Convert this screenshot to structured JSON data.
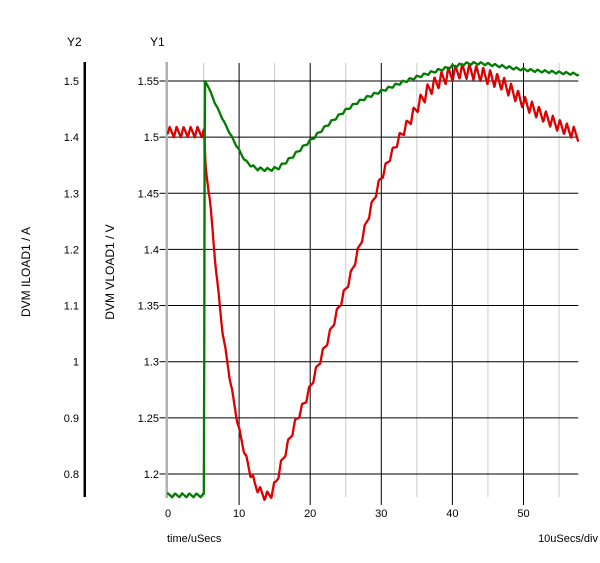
{
  "titles": {
    "y2": "Y2",
    "y1": "Y1"
  },
  "axes": {
    "y2": {
      "name": "DVM ILOAD1 / A",
      "unit": "A",
      "tick_labels": [
        "1.5",
        "1.4",
        "1.3",
        "1.2",
        "1.1",
        "1",
        "0.9",
        "0.8"
      ]
    },
    "y1": {
      "name": "DVM VLOAD1 / V",
      "unit": "V",
      "tick_labels": [
        "1.55",
        "1.5",
        "1.45",
        "1.4",
        "1.35",
        "1.3",
        "1.25",
        "1.2"
      ]
    },
    "x": {
      "name": "time/uSecs",
      "scale_note": "10uSecs/div",
      "tick_labels": [
        "0",
        "10",
        "20",
        "30",
        "40",
        "50"
      ],
      "minor_ticks": [
        5,
        15,
        25,
        35,
        45,
        55
      ],
      "range": [
        0,
        57.7
      ]
    }
  },
  "colors": {
    "grid_major": "#000000",
    "grid_minor": "#cccccc",
    "y2_axis_line": "#000000",
    "y1_axis_line": "#b0b0b0",
    "trace_green": "#007d00",
    "trace_red": "#dd0000"
  },
  "chart_data": {
    "type": "line",
    "title": "",
    "xlabel": "time/uSecs",
    "x_range": [
      0,
      57.7
    ],
    "grid": true,
    "axes_note": "dual y-axes: Y1 volts (1.2-1.55, 0.05/div), Y2 amps (0.8-1.5, 0.1/div), x 10uSecs/div",
    "series": [
      {
        "name": "DVM VLOAD1",
        "axis": "y1",
        "unit": "V",
        "color": "#dd0000",
        "points": [
          [
            0,
            1.5045
          ],
          [
            5.05,
            1.5045
          ],
          [
            5.3,
            1.472
          ],
          [
            5.9,
            1.444
          ],
          [
            6.6,
            1.392
          ],
          [
            7.6,
            1.33
          ],
          [
            8.7,
            1.285
          ],
          [
            9.8,
            1.245
          ],
          [
            10.8,
            1.218
          ],
          [
            11.5,
            1.203
          ],
          [
            12.2,
            1.191
          ],
          [
            13.0,
            1.184
          ],
          [
            13.7,
            1.18
          ],
          [
            14.5,
            1.182
          ],
          [
            15.2,
            1.193
          ],
          [
            15.8,
            1.206
          ],
          [
            17.0,
            1.229
          ],
          [
            18.0,
            1.247
          ],
          [
            19.5,
            1.268
          ],
          [
            21.0,
            1.295
          ],
          [
            22.5,
            1.32
          ],
          [
            24.0,
            1.348
          ],
          [
            25.5,
            1.373
          ],
          [
            27.0,
            1.404
          ],
          [
            28.5,
            1.436
          ],
          [
            29.8,
            1.461
          ],
          [
            31.2,
            1.482
          ],
          [
            32.6,
            1.5
          ],
          [
            34.0,
            1.515
          ],
          [
            35.4,
            1.531
          ],
          [
            36.9,
            1.544
          ],
          [
            38.3,
            1.551
          ],
          [
            39.5,
            1.5555
          ],
          [
            41.0,
            1.5585
          ],
          [
            42.5,
            1.5585
          ],
          [
            44.0,
            1.556
          ],
          [
            45.5,
            1.5525
          ],
          [
            47.0,
            1.548
          ],
          [
            48.5,
            1.54
          ],
          [
            50.0,
            1.531
          ],
          [
            51.5,
            1.5245
          ],
          [
            53.0,
            1.518
          ],
          [
            54.5,
            1.512
          ],
          [
            56.0,
            1.507
          ],
          [
            57.7,
            1.502
          ]
        ],
        "ripple": {
          "period": 0.98,
          "phase": 0.15,
          "amps": [
            [
              0,
              0.0048
            ],
            [
              5.0,
              0.0048
            ],
            [
              5.4,
              0.0015
            ],
            [
              10.5,
              0.002
            ],
            [
              11.5,
              0.004
            ],
            [
              16,
              0.004
            ],
            [
              18,
              0.0035
            ],
            [
              32,
              0.0035
            ],
            [
              34,
              0.005
            ],
            [
              36.5,
              0.0068
            ],
            [
              46,
              0.0068
            ],
            [
              50,
              0.006
            ],
            [
              57.7,
              0.0055
            ]
          ]
        }
      },
      {
        "name": "DVM ILOAD1",
        "axis": "y2",
        "unit": "A",
        "color": "#007d00",
        "points": [
          [
            0,
            0.762
          ],
          [
            5.05,
            0.762
          ],
          [
            5.18,
            1.5
          ],
          [
            5.6,
            1.492
          ],
          [
            6.6,
            1.461
          ],
          [
            8.0,
            1.424
          ],
          [
            9.4,
            1.39
          ],
          [
            10.8,
            1.359
          ],
          [
            11.8,
            1.348
          ],
          [
            12.7,
            1.3435
          ],
          [
            14.2,
            1.342
          ],
          [
            15.5,
            1.345
          ],
          [
            17.2,
            1.362
          ],
          [
            18.5,
            1.377
          ],
          [
            20.4,
            1.398
          ],
          [
            22.0,
            1.417
          ],
          [
            23.5,
            1.433
          ],
          [
            25.0,
            1.448
          ],
          [
            26.5,
            1.461
          ],
          [
            28.0,
            1.471
          ],
          [
            30.0,
            1.482
          ],
          [
            31.5,
            1.49
          ],
          [
            33.0,
            1.498
          ],
          [
            34.5,
            1.505
          ],
          [
            36.0,
            1.511
          ],
          [
            38.0,
            1.519
          ],
          [
            40.0,
            1.526
          ],
          [
            42.0,
            1.531
          ],
          [
            43.5,
            1.5315
          ],
          [
            45.0,
            1.53
          ],
          [
            47.0,
            1.526
          ],
          [
            49.0,
            1.522
          ],
          [
            51.0,
            1.519
          ],
          [
            53.0,
            1.517
          ],
          [
            55.0,
            1.515
          ],
          [
            57.7,
            1.512
          ]
        ],
        "ripple": {
          "period": 1.0,
          "phase": 0.4,
          "amps": [
            [
              0,
              0.0035
            ],
            [
              5.0,
              0.0035
            ],
            [
              5.3,
              0.001
            ],
            [
              11,
              0.0015
            ],
            [
              12,
              0.003
            ],
            [
              16,
              0.003
            ],
            [
              20,
              0.0025
            ],
            [
              40,
              0.0025
            ],
            [
              57.7,
              0.0022
            ]
          ]
        }
      }
    ],
    "y1_ticks": [
      1.55,
      1.5,
      1.45,
      1.4,
      1.35,
      1.3,
      1.25,
      1.2
    ],
    "y2_ticks": [
      1.5,
      1.4,
      1.3,
      1.2,
      1.1,
      1.0,
      0.9,
      0.8
    ],
    "x_ticks": [
      0,
      10,
      20,
      30,
      40,
      50
    ]
  }
}
